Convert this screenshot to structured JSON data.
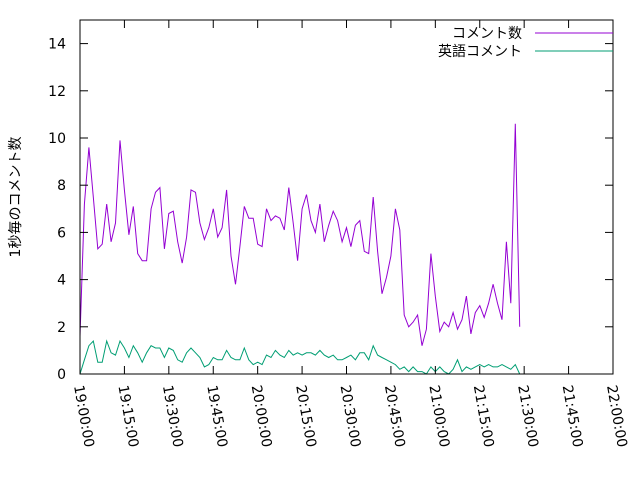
{
  "chart_data": {
    "type": "line",
    "title": "",
    "xlabel": "",
    "ylabel": "1秒毎のコメント数",
    "ylim": [
      0,
      15
    ],
    "xlim": [
      "19:00:00",
      "22:00:00"
    ],
    "yticks": [
      "0",
      "2",
      "4",
      "6",
      "8",
      "10",
      "12",
      "14"
    ],
    "xticks": [
      "19:00:00",
      "19:15:00",
      "19:30:00",
      "19:45:00",
      "20:00:00",
      "20:15:00",
      "20:30:00",
      "20:45:00",
      "21:00:00",
      "21:15:00",
      "21:30:00",
      "21:45:00",
      "22:00:00"
    ],
    "grid": false,
    "legend_position": "top-right",
    "series": [
      {
        "name": "コメント数",
        "color": "#9400d3",
        "points": [
          [
            "19:00:00",
            1.6
          ],
          [
            "19:01:30",
            7.2
          ],
          [
            "19:03:00",
            9.6
          ],
          [
            "19:04:30",
            7.5
          ],
          [
            "19:06:00",
            5.3
          ],
          [
            "19:07:30",
            5.5
          ],
          [
            "19:09:00",
            7.2
          ],
          [
            "19:10:30",
            5.6
          ],
          [
            "19:12:00",
            6.4
          ],
          [
            "19:13:30",
            9.9
          ],
          [
            "19:15:00",
            7.8
          ],
          [
            "19:16:30",
            5.9
          ],
          [
            "19:18:00",
            7.1
          ],
          [
            "19:19:30",
            5.1
          ],
          [
            "19:21:00",
            4.8
          ],
          [
            "19:22:30",
            4.8
          ],
          [
            "19:24:00",
            7.0
          ],
          [
            "19:25:30",
            7.7
          ],
          [
            "19:27:00",
            7.9
          ],
          [
            "19:28:30",
            5.3
          ],
          [
            "19:30:00",
            6.8
          ],
          [
            "19:31:30",
            6.9
          ],
          [
            "19:33:00",
            5.6
          ],
          [
            "19:34:30",
            4.7
          ],
          [
            "19:36:00",
            5.8
          ],
          [
            "19:37:30",
            7.8
          ],
          [
            "19:39:00",
            7.7
          ],
          [
            "19:40:30",
            6.4
          ],
          [
            "19:42:00",
            5.7
          ],
          [
            "19:43:30",
            6.2
          ],
          [
            "19:45:00",
            7.0
          ],
          [
            "19:46:30",
            5.8
          ],
          [
            "19:48:00",
            6.2
          ],
          [
            "19:49:30",
            7.8
          ],
          [
            "19:51:00",
            5.0
          ],
          [
            "19:52:30",
            3.8
          ],
          [
            "19:54:00",
            5.4
          ],
          [
            "19:55:30",
            7.1
          ],
          [
            "19:57:00",
            6.6
          ],
          [
            "19:58:30",
            6.6
          ],
          [
            "20:00:00",
            5.5
          ],
          [
            "20:01:30",
            5.4
          ],
          [
            "20:03:00",
            7.0
          ],
          [
            "20:04:30",
            6.5
          ],
          [
            "20:06:00",
            6.7
          ],
          [
            "20:07:30",
            6.6
          ],
          [
            "20:09:00",
            6.1
          ],
          [
            "20:10:30",
            7.9
          ],
          [
            "20:12:00",
            6.4
          ],
          [
            "20:13:30",
            4.8
          ],
          [
            "20:15:00",
            7.0
          ],
          [
            "20:16:30",
            7.6
          ],
          [
            "20:18:00",
            6.5
          ],
          [
            "20:19:30",
            6.0
          ],
          [
            "20:21:00",
            7.2
          ],
          [
            "20:22:30",
            5.6
          ],
          [
            "20:24:00",
            6.3
          ],
          [
            "20:25:30",
            6.9
          ],
          [
            "20:27:00",
            6.5
          ],
          [
            "20:28:30",
            5.6
          ],
          [
            "20:30:00",
            6.2
          ],
          [
            "20:31:30",
            5.4
          ],
          [
            "20:33:00",
            6.3
          ],
          [
            "20:34:30",
            6.5
          ],
          [
            "20:36:00",
            5.2
          ],
          [
            "20:37:30",
            5.1
          ],
          [
            "20:39:00",
            7.5
          ],
          [
            "20:40:30",
            5.2
          ],
          [
            "20:42:00",
            3.4
          ],
          [
            "20:43:30",
            4.1
          ],
          [
            "20:45:00",
            5.0
          ],
          [
            "20:46:30",
            7.0
          ],
          [
            "20:48:00",
            6.1
          ],
          [
            "20:49:30",
            2.5
          ],
          [
            "20:51:00",
            2.0
          ],
          [
            "20:52:30",
            2.2
          ],
          [
            "20:54:00",
            2.5
          ],
          [
            "20:55:30",
            1.2
          ],
          [
            "20:57:00",
            1.9
          ],
          [
            "20:58:30",
            5.1
          ],
          [
            "21:00:00",
            3.3
          ],
          [
            "21:01:30",
            1.8
          ],
          [
            "21:03:00",
            2.2
          ],
          [
            "21:04:30",
            2.0
          ],
          [
            "21:06:00",
            2.6
          ],
          [
            "21:07:30",
            1.9
          ],
          [
            "21:09:00",
            2.3
          ],
          [
            "21:10:30",
            3.3
          ],
          [
            "21:12:00",
            1.7
          ],
          [
            "21:13:30",
            2.6
          ],
          [
            "21:15:00",
            2.9
          ],
          [
            "21:16:30",
            2.4
          ],
          [
            "21:18:00",
            3.0
          ],
          [
            "21:19:30",
            3.8
          ],
          [
            "21:21:00",
            3.0
          ],
          [
            "21:22:30",
            2.3
          ],
          [
            "21:24:00",
            5.6
          ],
          [
            "21:25:30",
            3.0
          ],
          [
            "21:27:00",
            10.6
          ],
          [
            "21:28:30",
            2.0
          ]
        ]
      },
      {
        "name": "英語コメント",
        "color": "#009e73",
        "points": [
          [
            "19:00:00",
            0.0
          ],
          [
            "19:01:30",
            0.6
          ],
          [
            "19:03:00",
            1.2
          ],
          [
            "19:04:30",
            1.4
          ],
          [
            "19:06:00",
            0.5
          ],
          [
            "19:07:30",
            0.5
          ],
          [
            "19:09:00",
            1.4
          ],
          [
            "19:10:30",
            0.9
          ],
          [
            "19:12:00",
            0.8
          ],
          [
            "19:13:30",
            1.4
          ],
          [
            "19:15:00",
            1.1
          ],
          [
            "19:16:30",
            0.7
          ],
          [
            "19:18:00",
            1.2
          ],
          [
            "19:19:30",
            0.9
          ],
          [
            "19:21:00",
            0.5
          ],
          [
            "19:22:30",
            0.9
          ],
          [
            "19:24:00",
            1.2
          ],
          [
            "19:25:30",
            1.1
          ],
          [
            "19:27:00",
            1.1
          ],
          [
            "19:28:30",
            0.7
          ],
          [
            "19:30:00",
            1.1
          ],
          [
            "19:31:30",
            1.0
          ],
          [
            "19:33:00",
            0.6
          ],
          [
            "19:34:30",
            0.5
          ],
          [
            "19:36:00",
            0.9
          ],
          [
            "19:37:30",
            1.1
          ],
          [
            "19:39:00",
            0.9
          ],
          [
            "19:40:30",
            0.7
          ],
          [
            "19:42:00",
            0.3
          ],
          [
            "19:43:30",
            0.4
          ],
          [
            "19:45:00",
            0.7
          ],
          [
            "19:46:30",
            0.6
          ],
          [
            "19:48:00",
            0.6
          ],
          [
            "19:49:30",
            1.0
          ],
          [
            "19:51:00",
            0.7
          ],
          [
            "19:52:30",
            0.6
          ],
          [
            "19:54:00",
            0.6
          ],
          [
            "19:55:30",
            1.1
          ],
          [
            "19:57:00",
            0.6
          ],
          [
            "19:58:30",
            0.4
          ],
          [
            "20:00:00",
            0.5
          ],
          [
            "20:01:30",
            0.4
          ],
          [
            "20:03:00",
            0.8
          ],
          [
            "20:04:30",
            0.7
          ],
          [
            "20:06:00",
            1.0
          ],
          [
            "20:07:30",
            0.8
          ],
          [
            "20:09:00",
            0.7
          ],
          [
            "20:10:30",
            1.0
          ],
          [
            "20:12:00",
            0.8
          ],
          [
            "20:13:30",
            0.9
          ],
          [
            "20:15:00",
            0.8
          ],
          [
            "20:16:30",
            0.9
          ],
          [
            "20:18:00",
            0.9
          ],
          [
            "20:19:30",
            0.8
          ],
          [
            "20:21:00",
            1.0
          ],
          [
            "20:22:30",
            0.8
          ],
          [
            "20:24:00",
            0.7
          ],
          [
            "20:25:30",
            0.8
          ],
          [
            "20:27:00",
            0.6
          ],
          [
            "20:28:30",
            0.6
          ],
          [
            "20:30:00",
            0.7
          ],
          [
            "20:31:30",
            0.8
          ],
          [
            "20:33:00",
            0.6
          ],
          [
            "20:34:30",
            0.9
          ],
          [
            "20:36:00",
            0.9
          ],
          [
            "20:37:30",
            0.6
          ],
          [
            "20:39:00",
            1.2
          ],
          [
            "20:40:30",
            0.8
          ],
          [
            "20:42:00",
            0.7
          ],
          [
            "20:43:30",
            0.6
          ],
          [
            "20:45:00",
            0.5
          ],
          [
            "20:46:30",
            0.4
          ],
          [
            "20:48:00",
            0.2
          ],
          [
            "20:49:30",
            0.3
          ],
          [
            "20:51:00",
            0.1
          ],
          [
            "20:52:30",
            0.3
          ],
          [
            "20:54:00",
            0.1
          ],
          [
            "20:55:30",
            0.1
          ],
          [
            "20:57:00",
            0.0
          ],
          [
            "20:58:30",
            0.3
          ],
          [
            "21:00:00",
            0.1
          ],
          [
            "21:01:30",
            0.3
          ],
          [
            "21:03:00",
            0.1
          ],
          [
            "21:04:30",
            0.0
          ],
          [
            "21:06:00",
            0.2
          ],
          [
            "21:07:30",
            0.6
          ],
          [
            "21:09:00",
            0.1
          ],
          [
            "21:10:30",
            0.3
          ],
          [
            "21:12:00",
            0.2
          ],
          [
            "21:13:30",
            0.3
          ],
          [
            "21:15:00",
            0.4
          ],
          [
            "21:16:30",
            0.3
          ],
          [
            "21:18:00",
            0.4
          ],
          [
            "21:19:30",
            0.3
          ],
          [
            "21:21:00",
            0.3
          ],
          [
            "21:22:30",
            0.4
          ],
          [
            "21:24:00",
            0.3
          ],
          [
            "21:25:30",
            0.2
          ],
          [
            "21:27:00",
            0.4
          ],
          [
            "21:28:30",
            0.0
          ]
        ]
      }
    ]
  }
}
